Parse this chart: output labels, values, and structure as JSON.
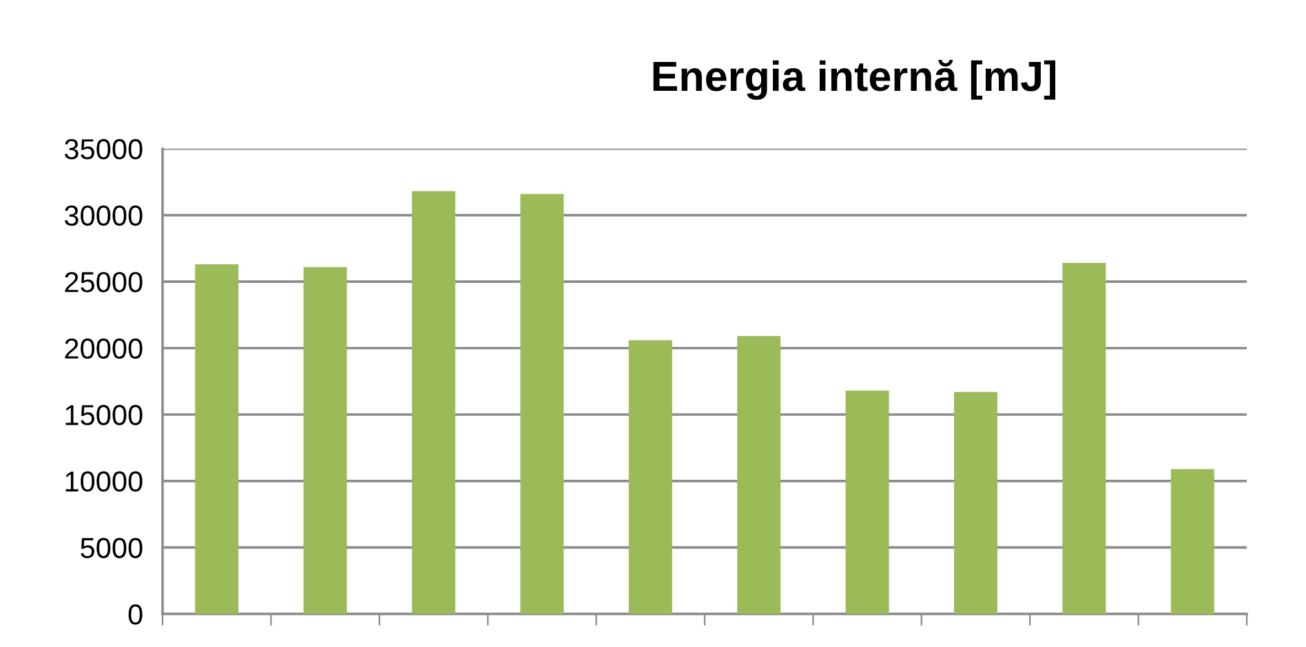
{
  "chart_data": {
    "type": "bar",
    "title": "Energia internă [mJ]",
    "categories": [
      null,
      null,
      null,
      null,
      null,
      null,
      null,
      null,
      null,
      null
    ],
    "values": [
      26300,
      26100,
      31800,
      31600,
      20600,
      20900,
      16800,
      16700,
      26400,
      10900
    ],
    "color": "#9bbb59",
    "ylim": [
      0,
      35000
    ],
    "yticks": [
      0,
      5000,
      10000,
      15000,
      20000,
      25000,
      30000,
      35000
    ],
    "grid": "y"
  }
}
